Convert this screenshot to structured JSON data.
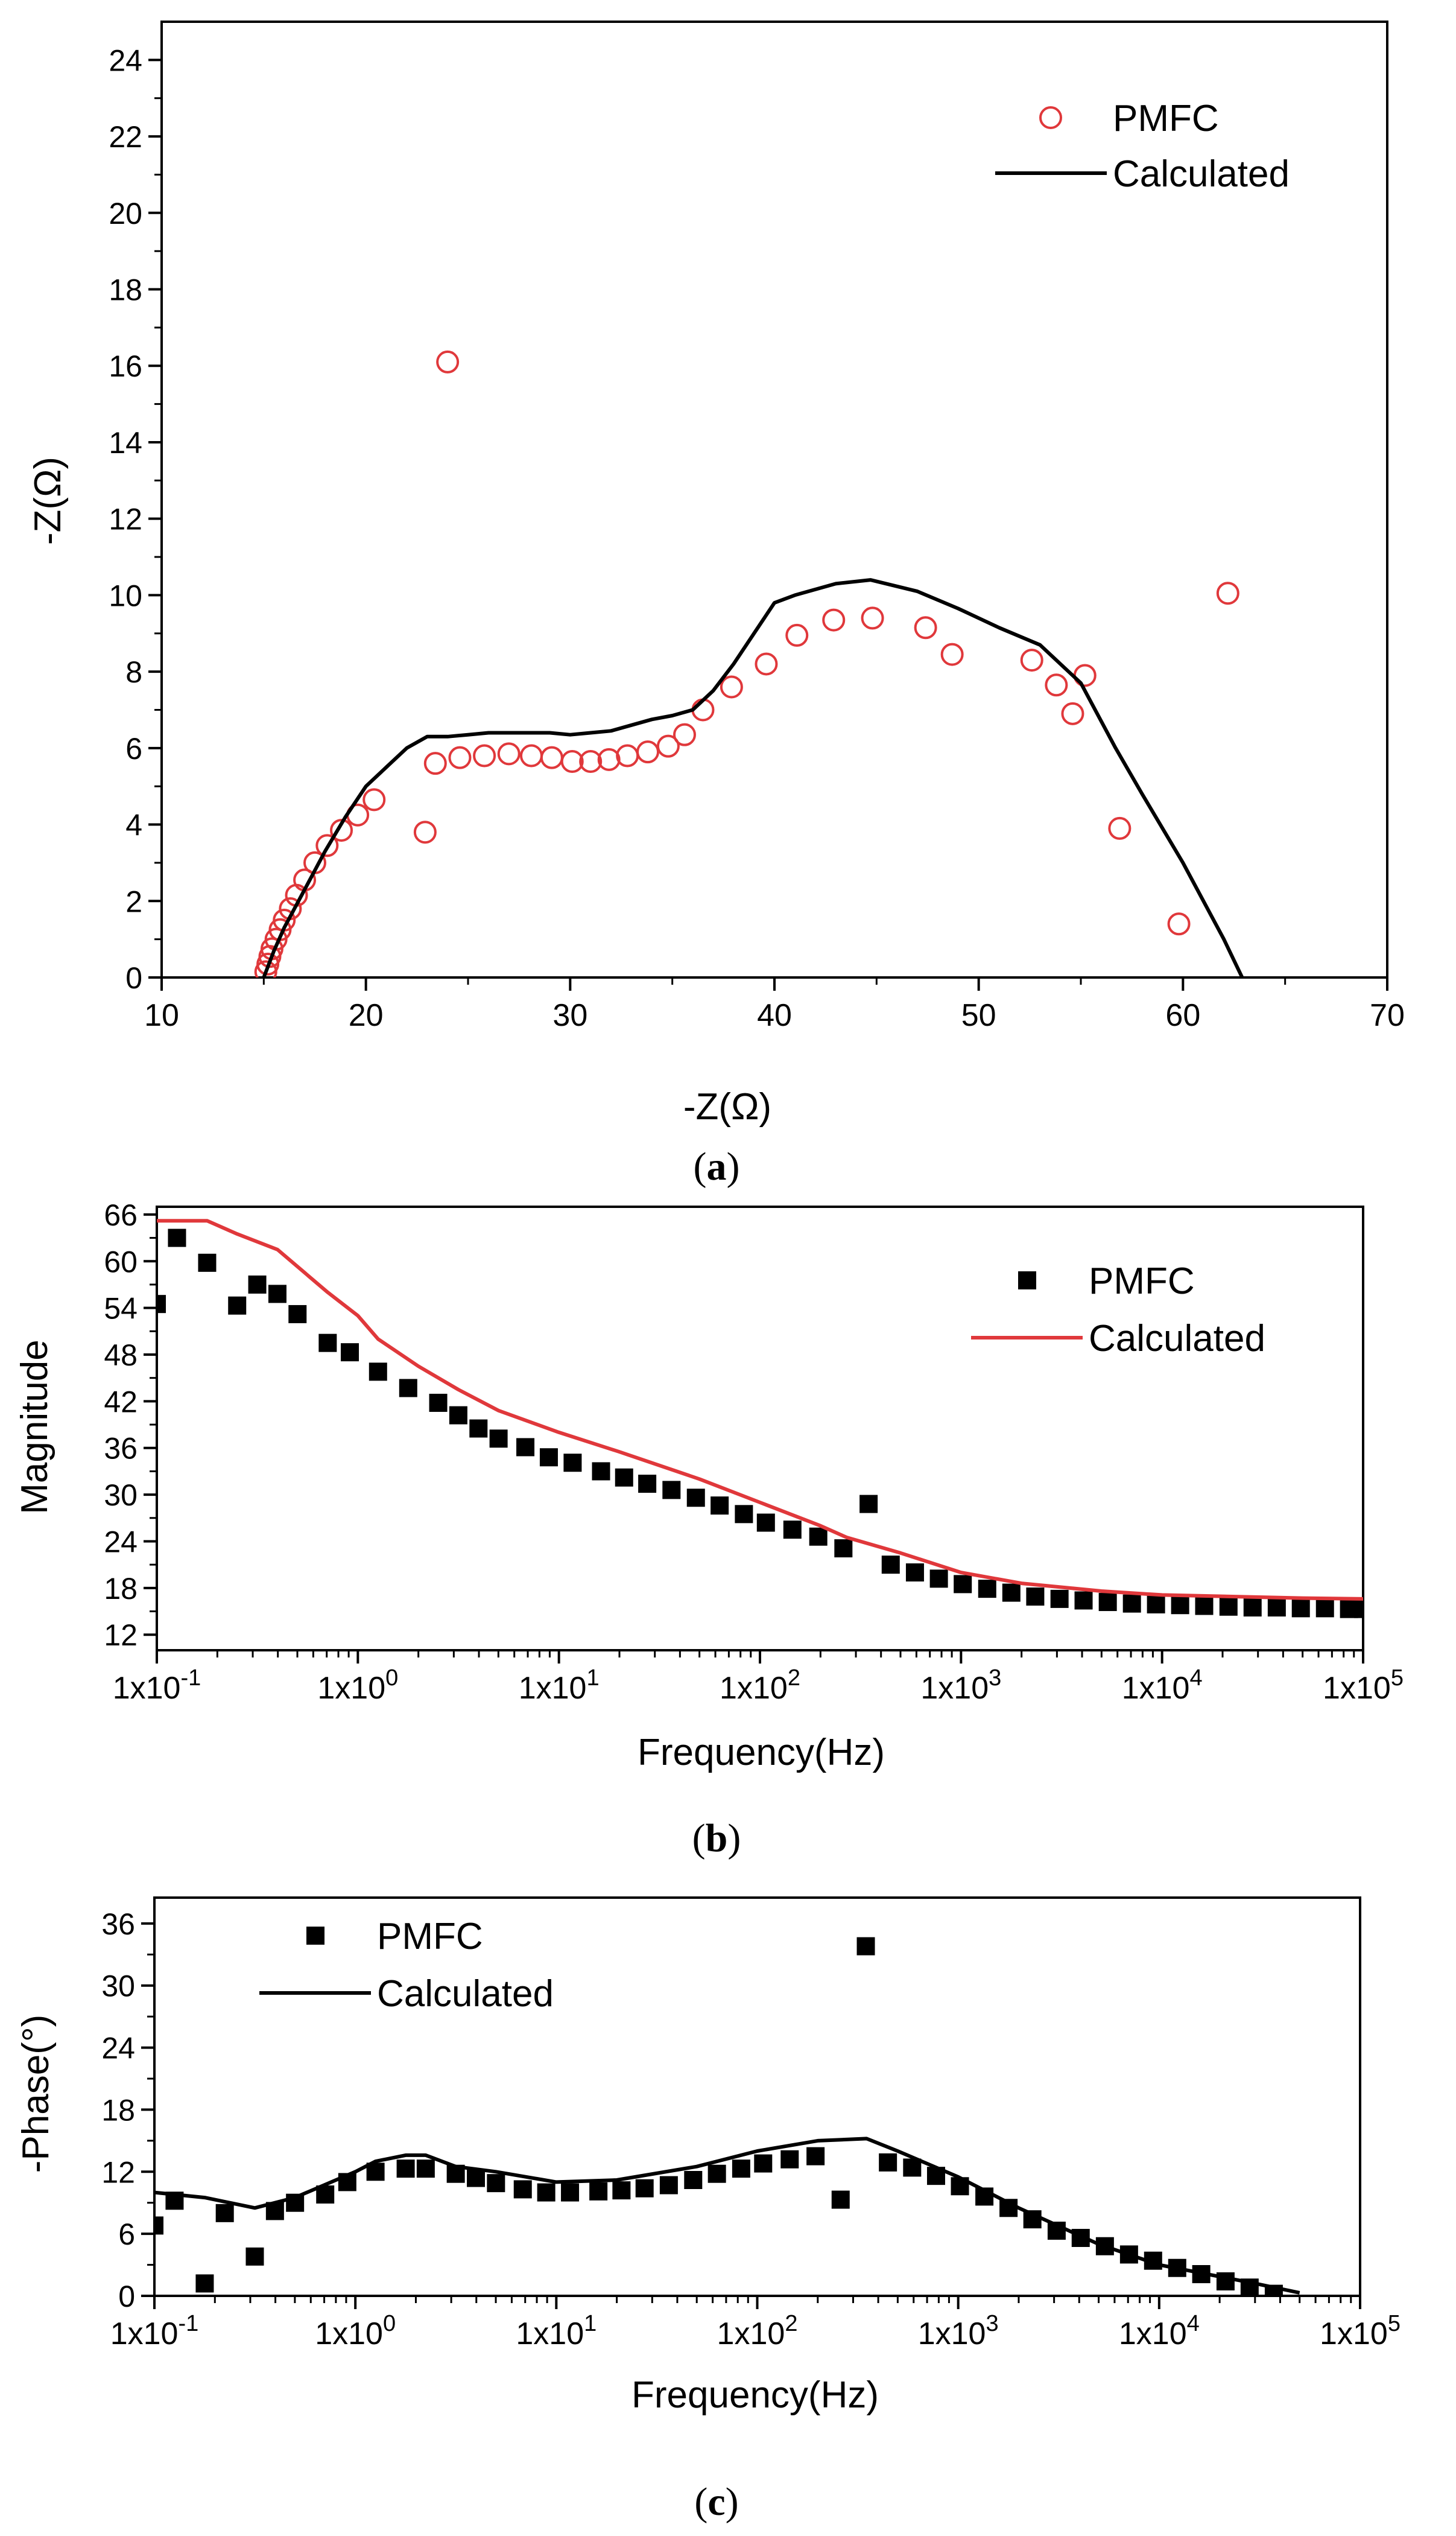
{
  "chart_data": [
    {
      "type": "scatter",
      "panel_caption": "a",
      "xlabel": "-Z(Ω)",
      "ylabel": "-Z(Ω)",
      "xlim": [
        10,
        70
      ],
      "ylim": [
        0,
        25
      ],
      "x_ticks": [
        "10",
        "20",
        "30",
        "40",
        "50",
        "60",
        "70"
      ],
      "y_ticks": [
        "0",
        "2",
        "4",
        "6",
        "8",
        "10",
        "12",
        "14",
        "16",
        "18",
        "20",
        "22",
        "24"
      ],
      "legend_placement": "top-right",
      "series": [
        {
          "name": "PMFC",
          "marker": "open-circle",
          "color": "#e0383b",
          "points": [
            [
              15.1,
              0.15
            ],
            [
              15.2,
              0.35
            ],
            [
              15.3,
              0.55
            ],
            [
              15.4,
              0.75
            ],
            [
              15.6,
              1.0
            ],
            [
              15.8,
              1.25
            ],
            [
              16.0,
              1.5
            ],
            [
              16.3,
              1.8
            ],
            [
              16.6,
              2.15
            ],
            [
              17.0,
              2.55
            ],
            [
              17.5,
              3.0
            ],
            [
              18.1,
              3.45
            ],
            [
              18.8,
              3.85
            ],
            [
              19.6,
              4.25
            ],
            [
              20.4,
              4.65
            ],
            [
              22.9,
              3.8
            ],
            [
              23.4,
              5.6
            ],
            [
              24.6,
              5.75
            ],
            [
              25.8,
              5.8
            ],
            [
              27.0,
              5.85
            ],
            [
              28.1,
              5.8
            ],
            [
              29.1,
              5.75
            ],
            [
              30.1,
              5.65
            ],
            [
              31.0,
              5.65
            ],
            [
              31.9,
              5.7
            ],
            [
              32.8,
              5.8
            ],
            [
              33.8,
              5.9
            ],
            [
              34.8,
              6.05
            ],
            [
              35.6,
              6.35
            ],
            [
              36.5,
              7.0
            ],
            [
              37.9,
              7.6
            ],
            [
              39.6,
              8.2
            ],
            [
              41.1,
              8.95
            ],
            [
              42.9,
              9.35
            ],
            [
              44.8,
              9.4
            ],
            [
              24.0,
              16.1
            ],
            [
              47.4,
              9.15
            ],
            [
              48.7,
              8.45
            ],
            [
              52.6,
              8.3
            ],
            [
              53.8,
              7.65
            ],
            [
              54.6,
              6.9
            ],
            [
              55.2,
              7.9
            ],
            [
              56.9,
              3.9
            ],
            [
              59.8,
              1.4
            ],
            [
              62.2,
              10.05
            ]
          ]
        },
        {
          "name": "Calculated",
          "type": "line",
          "color": "#000000",
          "x": [
            15.0,
            15.5,
            16.0,
            17.0,
            18.0,
            19.0,
            20.0,
            21.0,
            22.0,
            23.0,
            24.0,
            25.0,
            26.0,
            27.0,
            28.0,
            29.0,
            30.0,
            31.0,
            32.0,
            33.0,
            34.0,
            35.0,
            36.0,
            37.0,
            38.0,
            39.0,
            40.0,
            41.0,
            43.0,
            44.7,
            47.0,
            49.0,
            51.0,
            53.0,
            55.0,
            56.7,
            58.0,
            60.0,
            62.0,
            62.9
          ],
          "y": [
            0.0,
            0.7,
            1.3,
            2.3,
            3.3,
            4.2,
            5.0,
            5.5,
            6.0,
            6.3,
            6.3,
            6.35,
            6.4,
            6.4,
            6.4,
            6.4,
            6.35,
            6.4,
            6.45,
            6.6,
            6.75,
            6.85,
            7.0,
            7.5,
            8.2,
            9.0,
            9.8,
            10.0,
            10.3,
            10.4,
            10.1,
            9.65,
            9.15,
            8.7,
            7.7,
            6.0,
            4.8,
            3.0,
            1.0,
            0.0
          ]
        }
      ]
    },
    {
      "type": "scatter",
      "panel_caption": "b",
      "xlabel": "Frequency(Hz)",
      "ylabel": "Magnitude",
      "x_scale": "log",
      "xlim": [
        0.1,
        100000
      ],
      "ylim": [
        10,
        67
      ],
      "x_ticks": [
        "1x10-1",
        "1x100",
        "1x101",
        "1x102",
        "1x103",
        "1x104",
        "1x105"
      ],
      "y_ticks": [
        "12",
        "18",
        "24",
        "30",
        "36",
        "42",
        "48",
        "54",
        "60",
        "66"
      ],
      "legend_placement": "top-right",
      "series": [
        {
          "name": "PMFC",
          "marker": "filled-square",
          "color": "#000000",
          "x": [
            0.1,
            0.126,
            0.178,
            0.251,
            0.316,
            0.398,
            0.501,
            0.708,
            0.912,
            1.26,
            1.78,
            2.51,
            3.16,
            3.98,
            5.01,
            6.81,
            8.91,
            11.7,
            16.2,
            21.1,
            27.5,
            36.3,
            48.0,
            63.0,
            83.2,
            107,
            145,
            195,
            260,
            347,
            447,
            590,
            776,
            1020,
            1350,
            1780,
            2340,
            3090,
            4070,
            5370,
            7080,
            9330,
            12300,
            16200,
            21400,
            28200,
            37200,
            49000,
            64600,
            85100,
            100000
          ],
          "y": [
            54.5,
            63.0,
            59.8,
            54.3,
            57.0,
            55.8,
            53.2,
            49.5,
            48.3,
            45.8,
            43.7,
            41.8,
            40.2,
            38.5,
            37.2,
            36.1,
            34.8,
            34.1,
            33.0,
            32.2,
            31.4,
            30.6,
            29.6,
            28.6,
            27.5,
            26.4,
            25.5,
            24.6,
            23.1,
            28.8,
            21.0,
            20.0,
            19.2,
            18.5,
            17.9,
            17.4,
            16.9,
            16.6,
            16.4,
            16.2,
            16.0,
            15.9,
            15.8,
            15.7,
            15.6,
            15.5,
            15.5,
            15.4,
            15.4,
            15.3,
            15.3
          ]
        },
        {
          "name": "Calculated",
          "type": "line",
          "color": "#e0383b",
          "x": [
            0.1,
            0.178,
            0.251,
            0.398,
            0.708,
            1.0,
            1.26,
            2.0,
            3.16,
            5.01,
            10,
            20,
            50,
            100,
            200,
            270,
            500,
            1000,
            2000,
            5000,
            10000,
            50000,
            100000
          ],
          "y": [
            65.2,
            65.2,
            63.5,
            61.5,
            56.0,
            53.0,
            50.0,
            46.5,
            43.5,
            40.8,
            38.0,
            35.5,
            32.0,
            29.0,
            26.0,
            24.5,
            22.5,
            20.0,
            18.6,
            17.6,
            17.1,
            16.7,
            16.6
          ]
        }
      ]
    },
    {
      "type": "scatter",
      "panel_caption": "c",
      "xlabel": "Frequency(Hz)",
      "ylabel": "-Phase(°)",
      "x_scale": "log",
      "xlim": [
        0.1,
        100000
      ],
      "ylim": [
        0,
        38.5
      ],
      "x_ticks": [
        "1x10-1",
        "1x100",
        "1x101",
        "1x102",
        "1x103",
        "1x104",
        "1x105"
      ],
      "y_ticks": [
        "0",
        "6",
        "12",
        "18",
        "24",
        "30",
        "36"
      ],
      "legend_placement": "top-left",
      "series": [
        {
          "name": "PMFC",
          "marker": "filled-square",
          "color": "#000000",
          "x": [
            0.1,
            0.126,
            0.178,
            0.224,
            0.316,
            0.398,
            0.501,
            0.708,
            0.912,
            1.26,
            1.78,
            2.24,
            3.16,
            3.98,
            5.01,
            6.81,
            8.91,
            11.7,
            16.2,
            21.1,
            27.5,
            36.3,
            48.0,
            63.0,
            83.2,
            107,
            145,
            195,
            260,
            347,
            447,
            590,
            776,
            1020,
            1350,
            1780,
            2340,
            3090,
            4070,
            5370,
            7080,
            9330,
            12300,
            16200,
            21400,
            28200,
            37200
          ],
          "y": [
            6.8,
            9.2,
            1.2,
            8.0,
            3.8,
            8.2,
            9.0,
            9.8,
            11.0,
            12.0,
            12.3,
            12.3,
            11.8,
            11.4,
            10.9,
            10.3,
            10.0,
            10.0,
            10.1,
            10.2,
            10.4,
            10.7,
            11.2,
            11.8,
            12.3,
            12.8,
            13.2,
            13.5,
            9.3,
            33.8,
            12.9,
            12.4,
            11.6,
            10.6,
            9.6,
            8.5,
            7.4,
            6.3,
            5.6,
            4.8,
            4.0,
            3.4,
            2.7,
            2.1,
            1.4,
            0.8,
            0.2
          ]
        },
        {
          "name": "Calculated",
          "type": "line",
          "color": "#000000",
          "x": [
            0.1,
            0.178,
            0.316,
            0.5,
            1.0,
            1.26,
            1.78,
            2.24,
            3.16,
            5.01,
            10,
            20,
            50,
            100,
            200,
            350,
            500,
            1000,
            2000,
            5000,
            10000,
            30000,
            50000
          ],
          "y": [
            10.0,
            9.5,
            8.5,
            9.5,
            12.0,
            13.0,
            13.6,
            13.6,
            12.5,
            12.0,
            11.0,
            11.2,
            12.5,
            14.0,
            15.0,
            15.2,
            14.0,
            11.5,
            8.5,
            5.0,
            3.0,
            1.2,
            0.3
          ]
        }
      ]
    }
  ]
}
